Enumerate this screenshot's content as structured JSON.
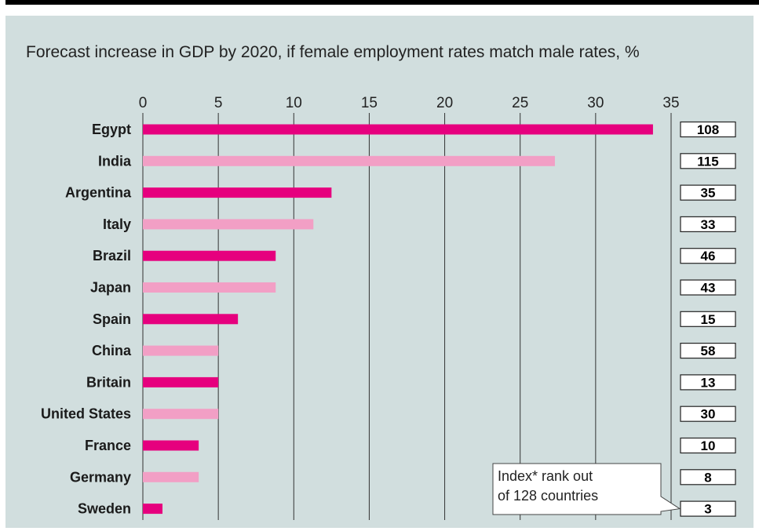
{
  "chart_data": {
    "type": "bar",
    "orientation": "horizontal",
    "title": "Forecast increase in GDP by 2020, if female employment rates match male rates, %",
    "xlim": [
      0,
      35
    ],
    "x_ticks": [
      0,
      5,
      10,
      15,
      20,
      25,
      30,
      35
    ],
    "grid": true,
    "categories": [
      "Egypt",
      "India",
      "Argentina",
      "Italy",
      "Brazil",
      "Japan",
      "Spain",
      "China",
      "Britain",
      "United States",
      "France",
      "Germany",
      "Sweden"
    ],
    "values": [
      33.8,
      27.3,
      12.5,
      11.3,
      8.8,
      8.8,
      6.3,
      5.0,
      5.0,
      5.0,
      3.7,
      3.7,
      1.3
    ],
    "index_rank": [
      "108",
      "115",
      "35",
      "33",
      "46",
      "43",
      "15",
      "58",
      "13",
      "30",
      "10",
      "8",
      "3"
    ],
    "annotation": [
      "Index* rank out",
      "of 128 countries"
    ],
    "colors": {
      "dark": "#e6007e",
      "light": "#f29fc5",
      "panel": "#d1dede",
      "top_bar": "#000000"
    }
  }
}
